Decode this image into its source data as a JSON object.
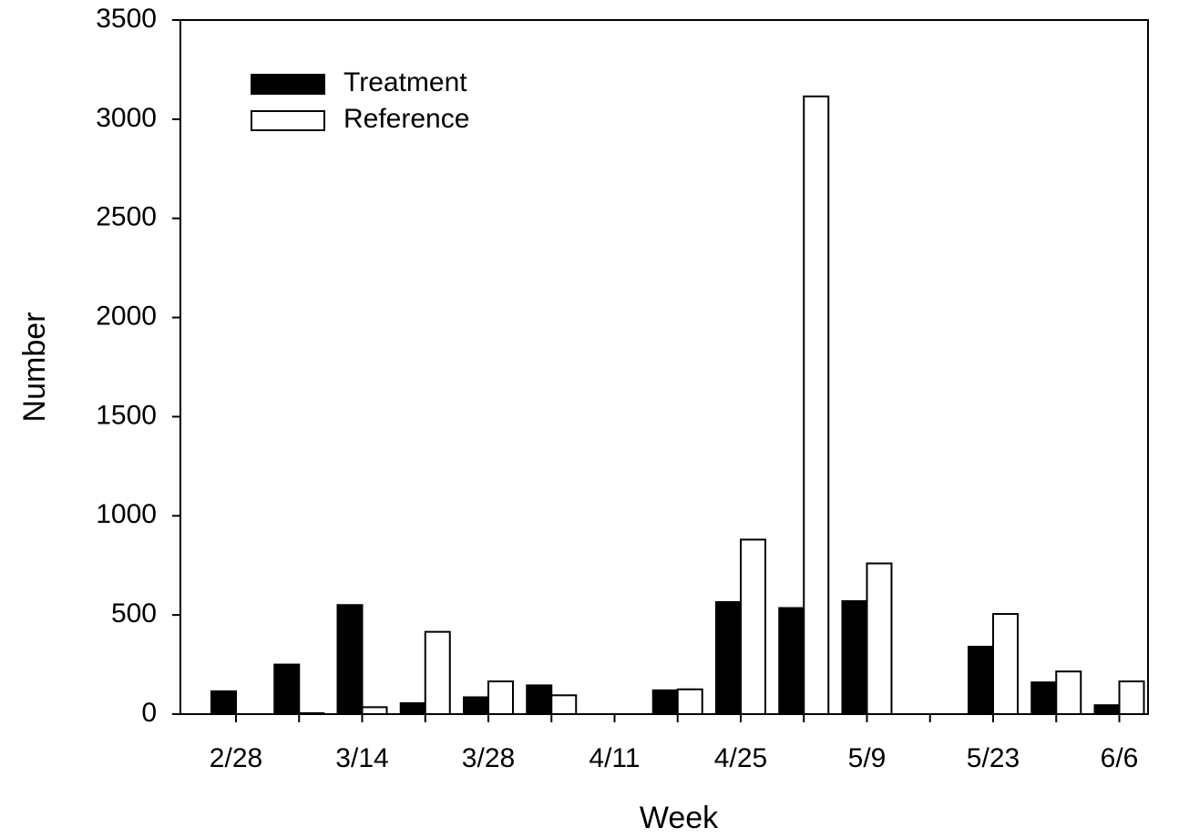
{
  "chart_data": {
    "type": "bar",
    "x_label": "Week",
    "y_label": "Number",
    "categories": [
      "2/28",
      null,
      "3/14",
      null,
      "3/28",
      null,
      "4/11",
      null,
      "4/25",
      null,
      "5/9",
      null,
      "5/23",
      null,
      "6/6"
    ],
    "series": [
      {
        "name": "Treatment",
        "color": "#000000",
        "values": [
          115,
          250,
          550,
          55,
          85,
          145,
          0,
          120,
          565,
          535,
          570,
          0,
          340,
          160,
          45
        ]
      },
      {
        "name": "Reference",
        "color": "#ffffff",
        "values": [
          0,
          5,
          35,
          415,
          165,
          95,
          0,
          125,
          880,
          3115,
          760,
          0,
          505,
          215,
          165
        ]
      }
    ],
    "ylim": [
      0,
      3500
    ],
    "yticks": [
      0,
      500,
      1000,
      1500,
      2000,
      2500,
      3000,
      3500
    ],
    "legend": "top-left"
  }
}
